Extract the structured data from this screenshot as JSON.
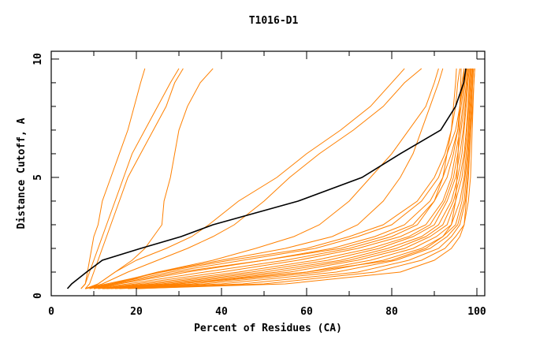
{
  "chart_data": {
    "type": "line",
    "title": "T1016-D1",
    "xlabel": "Percent of Residues (CA)",
    "ylabel": "Distance Cutoff, A",
    "xlim": [
      0,
      101.85
    ],
    "ylim": [
      0,
      10.33
    ],
    "xticks": [
      "0",
      "20",
      "40",
      "60",
      "80",
      "100"
    ],
    "yticks": [
      "0",
      "5",
      "10"
    ],
    "grid": false,
    "y_levels": [
      0.3,
      0.5,
      1,
      1.5,
      2,
      2.5,
      3,
      4,
      5,
      6,
      7,
      8,
      9,
      9.6
    ],
    "reference_series": {
      "name": "reference",
      "color": "#000000",
      "x": [
        3.8,
        4.8,
        8.3,
        12,
        21,
        30.5,
        38,
        58,
        73,
        82,
        91.5,
        95,
        96.9,
        97.4
      ]
    },
    "series_color": "#ff8000",
    "series": [
      {
        "x": [
          7,
          8,
          8.5,
          9,
          9.5,
          10,
          11,
          12,
          14,
          16,
          18,
          19.5,
          21,
          22
        ]
      },
      {
        "x": [
          7,
          8,
          9,
          10,
          11,
          12,
          13,
          15,
          17,
          19,
          22,
          25,
          28,
          30
        ]
      },
      {
        "x": [
          8,
          9,
          10,
          11,
          12,
          13,
          14,
          16,
          18,
          21,
          24,
          27,
          29,
          31
        ]
      },
      {
        "x": [
          9,
          11,
          15,
          19,
          22,
          24,
          26,
          26.5,
          28,
          29,
          30,
          32,
          35,
          38
        ]
      },
      {
        "x": [
          8,
          11,
          15,
          20,
          27,
          33,
          37,
          44,
          53,
          60,
          68,
          75,
          80,
          83
        ]
      },
      {
        "x": [
          8,
          12,
          18,
          25,
          32,
          38,
          43,
          50,
          56,
          63,
          71,
          78,
          83,
          87
        ]
      },
      {
        "x": [
          10,
          15,
          25,
          38,
          48,
          57,
          63,
          70,
          75,
          80,
          84,
          88,
          90,
          91
        ]
      },
      {
        "x": [
          8,
          14,
          25,
          40,
          55,
          66,
          72,
          78,
          82,
          85,
          87,
          89,
          91,
          92
        ]
      },
      {
        "x": [
          9,
          14,
          28,
          45,
          62,
          72,
          80,
          87,
          91,
          93,
          95,
          96,
          96.5,
          97
        ]
      },
      {
        "x": [
          10,
          16,
          32,
          50,
          66,
          76,
          83,
          89,
          92,
          94,
          95.5,
          96,
          96.8,
          97
        ]
      },
      {
        "x": [
          10,
          18,
          36,
          55,
          70,
          80,
          86,
          90,
          93,
          94.5,
          95.5,
          96.3,
          97,
          97.5
        ]
      },
      {
        "x": [
          11,
          20,
          40,
          58,
          72,
          82,
          88,
          92,
          94,
          95,
          96,
          96.7,
          97.2,
          97.6
        ]
      },
      {
        "x": [
          11,
          22,
          44,
          62,
          75,
          84,
          89,
          92.5,
          94.5,
          95.5,
          96.3,
          97,
          97.5,
          97.8
        ]
      },
      {
        "x": [
          12,
          24,
          47,
          65,
          77,
          85,
          90,
          93,
          95,
          96,
          96.8,
          97.3,
          97.7,
          98
        ]
      },
      {
        "x": [
          12,
          26,
          50,
          68,
          79,
          87,
          91,
          94,
          95.5,
          96.5,
          97,
          97.5,
          97.9,
          98.2
        ]
      },
      {
        "x": [
          13,
          28,
          53,
          70,
          81,
          88,
          92,
          94.5,
          96,
          97,
          97.5,
          97.9,
          98.2,
          98.4
        ]
      },
      {
        "x": [
          13,
          30,
          56,
          72,
          83,
          89,
          93,
          95,
          96.5,
          97.2,
          97.7,
          98,
          98.3,
          98.5
        ]
      },
      {
        "x": [
          14,
          33,
          60,
          75,
          85,
          90.5,
          94,
          96,
          97,
          97.5,
          98,
          98.2,
          98.5,
          98.7
        ]
      },
      {
        "x": [
          15,
          36,
          63,
          78,
          87,
          92,
          95,
          96.5,
          97.2,
          97.8,
          98.1,
          98.4,
          98.7,
          98.9
        ]
      },
      {
        "x": [
          16,
          40,
          67,
          81,
          89,
          93,
          95.5,
          97,
          97.5,
          98,
          98.3,
          98.6,
          98.9,
          99
        ]
      },
      {
        "x": [
          18,
          45,
          72,
          84,
          91,
          94,
          96,
          97.3,
          97.8,
          98.2,
          98.5,
          98.8,
          99,
          99.2
        ]
      },
      {
        "x": [
          20,
          50,
          76,
          87,
          92.5,
          95,
          97,
          98,
          98.5,
          98.7,
          98.9,
          99.1,
          99.3,
          99.5
        ]
      },
      {
        "x": [
          12,
          30,
          60,
          80,
          88,
          92,
          94,
          95,
          95.3,
          95.6,
          95.8,
          96,
          96.2,
          96.3
        ]
      },
      {
        "x": [
          9,
          15,
          30,
          50,
          68,
          78,
          85,
          90,
          92,
          93,
          94,
          94.5,
          95,
          95.2
        ]
      },
      {
        "x": [
          20,
          55,
          82,
          90,
          94,
          96,
          97,
          97.5,
          98,
          98.3,
          98.6,
          99,
          99.3,
          99.5
        ]
      },
      {
        "x": [
          8,
          13,
          26,
          42,
          60,
          70,
          78,
          86,
          90,
          92.5,
          94,
          95,
          95.5,
          96
        ]
      }
    ]
  }
}
